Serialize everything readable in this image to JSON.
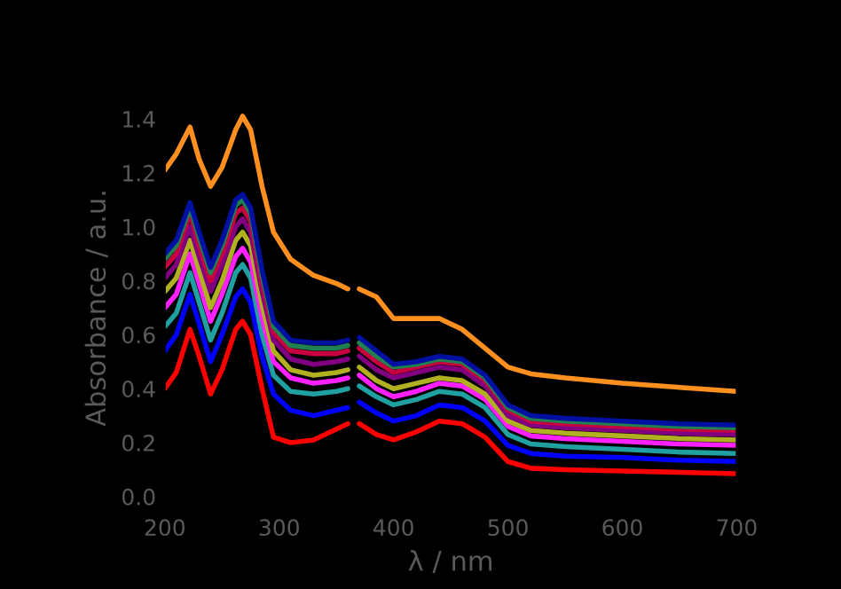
{
  "chart_data": {
    "type": "line",
    "xlabel": "λ / nm",
    "ylabel": "Absorbance / a.u.",
    "x": [
      200,
      210,
      222,
      230,
      240,
      250,
      262,
      268,
      275,
      285,
      295,
      310,
      330,
      350,
      360,
      365,
      370,
      385,
      400,
      420,
      440,
      460,
      480,
      500,
      520,
      550,
      600,
      650,
      700
    ],
    "xlim": [
      200,
      700
    ],
    "xticks": [
      200,
      300,
      400,
      500,
      600,
      700
    ],
    "ylim": [
      -0.05,
      1.45
    ],
    "yticks": [
      {
        "value": 0,
        "label": "0.0"
      },
      0.2,
      0.4,
      0.6,
      0.8,
      {
        "value": 1,
        "label": "1.0"
      },
      1.2,
      1.4
    ],
    "grid": false,
    "legend": false,
    "marker": "none",
    "line_style": "solid",
    "series": [
      {
        "color": "#ff0000",
        "values": [
          0.4,
          0.46,
          0.62,
          0.52,
          0.38,
          0.47,
          0.62,
          0.65,
          0.6,
          0.4,
          0.22,
          0.2,
          0.21,
          0.25,
          0.27,
          null,
          0.27,
          0.23,
          0.21,
          0.24,
          0.28,
          0.27,
          0.22,
          0.13,
          0.105,
          0.1,
          0.095,
          0.09,
          0.085
        ]
      },
      {
        "color": "#0000ff",
        "values": [
          0.54,
          0.6,
          0.75,
          0.64,
          0.5,
          0.6,
          0.74,
          0.77,
          0.72,
          0.52,
          0.38,
          0.32,
          0.3,
          0.32,
          0.33,
          null,
          0.35,
          0.31,
          0.28,
          0.3,
          0.34,
          0.33,
          0.28,
          0.19,
          0.16,
          0.15,
          0.145,
          0.135,
          0.13
        ]
      },
      {
        "color": "#20a0a0",
        "values": [
          0.63,
          0.68,
          0.83,
          0.72,
          0.58,
          0.68,
          0.83,
          0.86,
          0.81,
          0.6,
          0.45,
          0.39,
          0.38,
          0.39,
          0.4,
          null,
          0.41,
          0.37,
          0.34,
          0.36,
          0.39,
          0.38,
          0.33,
          0.23,
          0.195,
          0.185,
          0.175,
          0.165,
          0.16
        ]
      },
      {
        "color": "#ff20ff",
        "values": [
          0.7,
          0.75,
          0.9,
          0.79,
          0.65,
          0.75,
          0.89,
          0.92,
          0.87,
          0.66,
          0.5,
          0.44,
          0.42,
          0.43,
          0.44,
          null,
          0.45,
          0.4,
          0.37,
          0.39,
          0.42,
          0.41,
          0.36,
          0.26,
          0.225,
          0.215,
          0.205,
          0.195,
          0.19
        ]
      },
      {
        "color": "#b0b020",
        "values": [
          0.76,
          0.81,
          0.95,
          0.84,
          0.7,
          0.8,
          0.95,
          0.98,
          0.93,
          0.71,
          0.54,
          0.47,
          0.45,
          0.46,
          0.47,
          null,
          0.48,
          0.43,
          0.4,
          0.42,
          0.44,
          0.43,
          0.38,
          0.28,
          0.245,
          0.235,
          0.225,
          0.215,
          0.21
        ]
      },
      {
        "color": "#800080",
        "values": [
          0.81,
          0.86,
          1.0,
          0.89,
          0.76,
          0.86,
          1.0,
          1.03,
          0.98,
          0.76,
          0.58,
          0.51,
          0.49,
          0.5,
          0.51,
          null,
          0.52,
          0.47,
          0.44,
          0.46,
          0.48,
          0.47,
          0.41,
          0.3,
          0.265,
          0.255,
          0.245,
          0.235,
          0.23
        ]
      },
      {
        "color": "#c80040",
        "values": [
          0.85,
          0.9,
          1.05,
          0.93,
          0.8,
          0.9,
          1.05,
          1.07,
          1.02,
          0.79,
          0.61,
          0.54,
          0.53,
          0.53,
          0.54,
          null,
          0.55,
          0.5,
          0.46,
          0.48,
          0.5,
          0.49,
          0.43,
          0.32,
          0.28,
          0.27,
          0.26,
          0.25,
          0.245
        ]
      },
      {
        "color": "#208050",
        "values": [
          0.88,
          0.93,
          1.07,
          0.96,
          0.83,
          0.93,
          1.08,
          1.1,
          1.05,
          0.82,
          0.63,
          0.56,
          0.55,
          0.55,
          0.56,
          null,
          0.57,
          0.52,
          0.48,
          0.49,
          0.51,
          0.5,
          0.44,
          0.33,
          0.29,
          0.28,
          0.27,
          0.26,
          0.255
        ]
      },
      {
        "color": "#0010a0",
        "values": [
          0.9,
          0.95,
          1.09,
          0.98,
          0.85,
          0.95,
          1.1,
          1.12,
          1.07,
          0.84,
          0.65,
          0.58,
          0.57,
          0.57,
          0.58,
          null,
          0.59,
          0.54,
          0.49,
          0.5,
          0.52,
          0.51,
          0.45,
          0.34,
          0.3,
          0.29,
          0.28,
          0.27,
          0.265
        ]
      },
      {
        "color": "#ff9020",
        "values": [
          1.21,
          1.27,
          1.37,
          1.25,
          1.15,
          1.22,
          1.36,
          1.41,
          1.36,
          1.15,
          0.98,
          0.88,
          0.82,
          0.79,
          0.77,
          null,
          0.77,
          0.74,
          0.66,
          0.66,
          0.66,
          0.62,
          0.55,
          0.48,
          0.455,
          0.44,
          0.42,
          0.405,
          0.39
        ]
      }
    ]
  }
}
